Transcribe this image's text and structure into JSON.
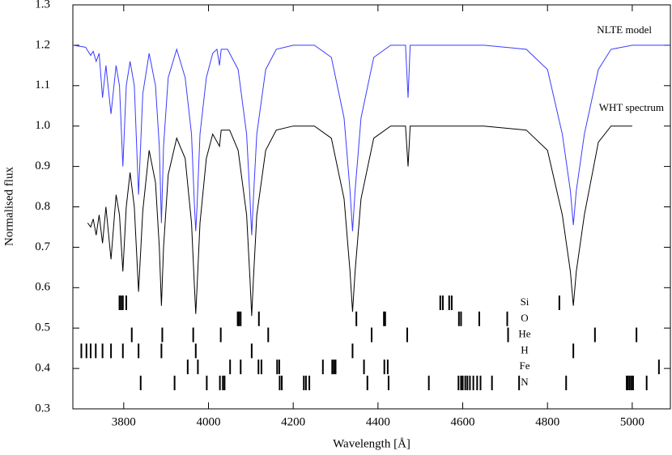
{
  "chart_data": {
    "type": "line",
    "xlabel": "Wavelength [Å]",
    "ylabel": "Normalised flux",
    "xlim": [
      3680,
      5090
    ],
    "ylim": [
      0.3,
      1.3
    ],
    "xticks": [
      3800,
      4000,
      4200,
      4400,
      4600,
      4800,
      5000
    ],
    "yticks": [
      0.3,
      0.4,
      0.5,
      0.6,
      0.7,
      0.8,
      0.9,
      {
        "value": 1,
        "label": "1.0"
      },
      1.1,
      1.2,
      1.3
    ],
    "series": [
      {
        "name": "NLTE model",
        "color": "#3b3bff",
        "x": [
          3680,
          3710,
          3722,
          3728,
          3735,
          3742,
          3750,
          3758,
          3770,
          3782,
          3790,
          3798,
          3806,
          3815,
          3825,
          3835,
          3845,
          3860,
          3875,
          3884,
          3889,
          3894,
          3905,
          3925,
          3945,
          3960,
          3967,
          3970,
          3973,
          3980,
          3995,
          4010,
          4020,
          4026,
          4030,
          4045,
          4070,
          4090,
          4098,
          4102,
          4106,
          4114,
          4135,
          4160,
          4200,
          4250,
          4290,
          4320,
          4334,
          4340,
          4346,
          4360,
          4390,
          4430,
          4465,
          4471,
          4476,
          4550,
          4650,
          4750,
          4800,
          4835,
          4854,
          4861,
          4868,
          4887,
          4920,
          4950,
          5000,
          5090
        ],
        "values": [
          1.2,
          1.195,
          1.175,
          1.185,
          1.16,
          1.18,
          1.07,
          1.15,
          1.03,
          1.15,
          1.1,
          0.9,
          1.1,
          1.16,
          1.1,
          0.83,
          1.08,
          1.18,
          1.1,
          0.95,
          0.76,
          0.95,
          1.12,
          1.19,
          1.12,
          0.98,
          0.8,
          0.74,
          0.8,
          0.98,
          1.12,
          1.18,
          1.19,
          1.15,
          1.19,
          1.19,
          1.14,
          0.98,
          0.82,
          0.73,
          0.82,
          0.98,
          1.14,
          1.19,
          1.2,
          1.2,
          1.17,
          1.02,
          0.84,
          0.74,
          0.84,
          1.02,
          1.17,
          1.2,
          1.2,
          1.07,
          1.2,
          1.2,
          1.2,
          1.19,
          1.14,
          0.98,
          0.84,
          0.755,
          0.84,
          0.98,
          1.14,
          1.19,
          1.2,
          1.2
        ]
      },
      {
        "name": "WHT spectrum",
        "color": "#000000",
        "x": [
          3715,
          3722,
          3728,
          3735,
          3742,
          3750,
          3758,
          3770,
          3782,
          3790,
          3798,
          3806,
          3815,
          3825,
          3835,
          3845,
          3860,
          3875,
          3884,
          3889,
          3894,
          3905,
          3925,
          3945,
          3960,
          3967,
          3970,
          3973,
          3980,
          3995,
          4010,
          4026,
          4030,
          4050,
          4070,
          4090,
          4098,
          4102,
          4106,
          4114,
          4135,
          4160,
          4200,
          4250,
          4290,
          4320,
          4334,
          4340,
          4346,
          4360,
          4390,
          4430,
          4465,
          4471,
          4476,
          4550,
          4650,
          4750,
          4800,
          4835,
          4854,
          4861,
          4868,
          4887,
          4920,
          4950,
          5000
        ],
        "values": [
          0.76,
          0.75,
          0.77,
          0.73,
          0.78,
          0.71,
          0.8,
          0.67,
          0.83,
          0.78,
          0.64,
          0.8,
          0.885,
          0.8,
          0.59,
          0.79,
          0.94,
          0.86,
          0.7,
          0.555,
          0.7,
          0.88,
          0.97,
          0.92,
          0.76,
          0.6,
          0.535,
          0.6,
          0.76,
          0.92,
          0.98,
          0.95,
          0.99,
          0.99,
          0.94,
          0.78,
          0.62,
          0.53,
          0.62,
          0.78,
          0.94,
          0.99,
          1.0,
          1.0,
          0.97,
          0.82,
          0.64,
          0.54,
          0.64,
          0.82,
          0.97,
          1.0,
          1.0,
          0.9,
          1.0,
          1.0,
          1.0,
          0.99,
          0.94,
          0.78,
          0.64,
          0.555,
          0.64,
          0.78,
          0.96,
          1.0,
          1.0
        ]
      }
    ],
    "line_lists": [
      {
        "name": "Si",
        "x": [
          3790,
          3794,
          3798,
          3806,
          4547,
          4553,
          4568,
          4574,
          4828
        ]
      },
      {
        "name": "O",
        "x": [
          4069,
          4072,
          4076,
          4119,
          4349,
          4414,
          4417,
          4591,
          4596,
          4639,
          4705
        ]
      },
      {
        "name": "He",
        "x": [
          3819,
          3891,
          3964,
          4029,
          4141,
          4385,
          4469,
          4707,
          4912,
          5010
        ]
      },
      {
        "name": "H",
        "x": [
          3700,
          3712,
          3722,
          3734,
          3750,
          3770,
          3798,
          3835,
          3889,
          3970,
          4102,
          4340,
          4861
        ]
      },
      {
        "name": "Fe",
        "x": [
          3951,
          3975,
          4051,
          4076,
          4118,
          4125,
          4162,
          4167,
          4270,
          4292,
          4296,
          4300,
          4367,
          4415,
          4423,
          5063
        ]
      },
      {
        "name": "N",
        "x": [
          3840,
          3920,
          3996,
          4027,
          4034,
          4038,
          4168,
          4173,
          4225,
          4230,
          4238,
          4375,
          4425,
          4520,
          4590,
          4596,
          4600,
          4606,
          4611,
          4617,
          4625,
          4634,
          4642,
          4669,
          4733,
          4844,
          4987,
          4990,
          4994,
          4998,
          5002,
          5034
        ]
      }
    ]
  }
}
